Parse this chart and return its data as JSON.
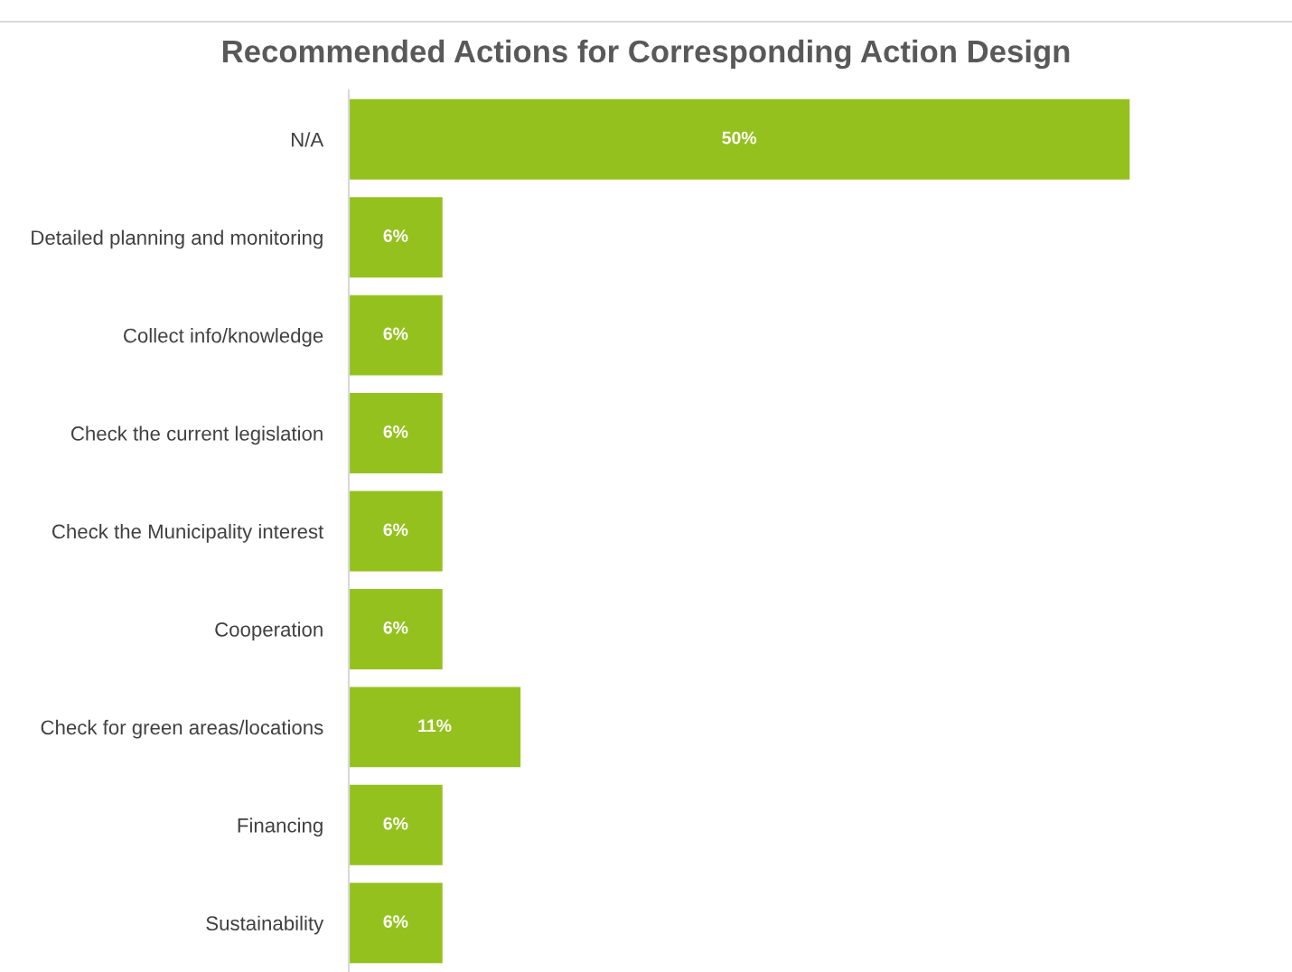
{
  "chart_data": {
    "type": "bar",
    "orientation": "horizontal",
    "title": "Recommended Actions for Corresponding Action Design",
    "categories": [
      "N/A",
      "Detailed planning and monitoring",
      "Collect info/knowledge",
      "Check the current legislation",
      "Check the Municipality interest",
      "Cooperation",
      "Check for green areas/locations",
      "Financing",
      "Sustainability"
    ],
    "values": [
      50,
      6,
      6,
      6,
      6,
      6,
      11,
      6,
      6
    ],
    "value_labels": [
      "50%",
      "6%",
      "6%",
      "6%",
      "6%",
      "6%",
      "11%",
      "6%",
      "6%"
    ],
    "color": "#95c11f",
    "grid": false,
    "legend": false
  }
}
